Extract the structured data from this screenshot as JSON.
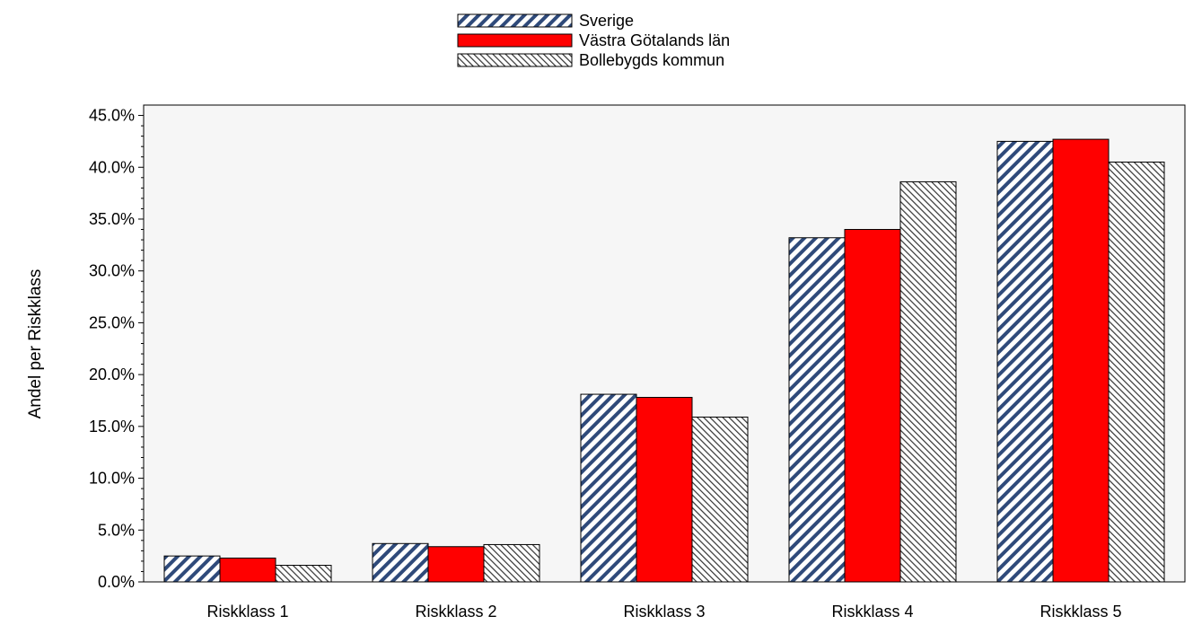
{
  "chart_data": {
    "type": "bar",
    "title": "",
    "xlabel": "",
    "ylabel": "Andel per Riskklass",
    "categories": [
      "Riskklass 1",
      "Riskklass 2",
      "Riskklass 3",
      "Riskklass 4",
      "Riskklass 5"
    ],
    "series": [
      {
        "name": "Sverige",
        "values": [
          2.5,
          3.7,
          18.1,
          33.2,
          42.5
        ],
        "pattern": "diagonal-stripes-blue",
        "color": "#2f4a7a"
      },
      {
        "name": "Västra Götalands län",
        "values": [
          2.3,
          3.4,
          17.8,
          34.0,
          42.7
        ],
        "pattern": "solid",
        "color": "#ff0000"
      },
      {
        "name": "Bollebygds kommun",
        "values": [
          1.6,
          3.6,
          15.9,
          38.6,
          40.5
        ],
        "pattern": "diagonal-hatch-gray",
        "color": "#555555"
      }
    ],
    "y_ticks": [
      "0.0%",
      "5.0%",
      "10.0%",
      "15.0%",
      "20.0%",
      "25.0%",
      "30.0%",
      "35.0%",
      "40.0%",
      "45.0%"
    ],
    "ylim": [
      0,
      46
    ],
    "y_unit": "%",
    "grid": false,
    "legend_position": "top-center",
    "plot_background": "#f6f6f6"
  }
}
